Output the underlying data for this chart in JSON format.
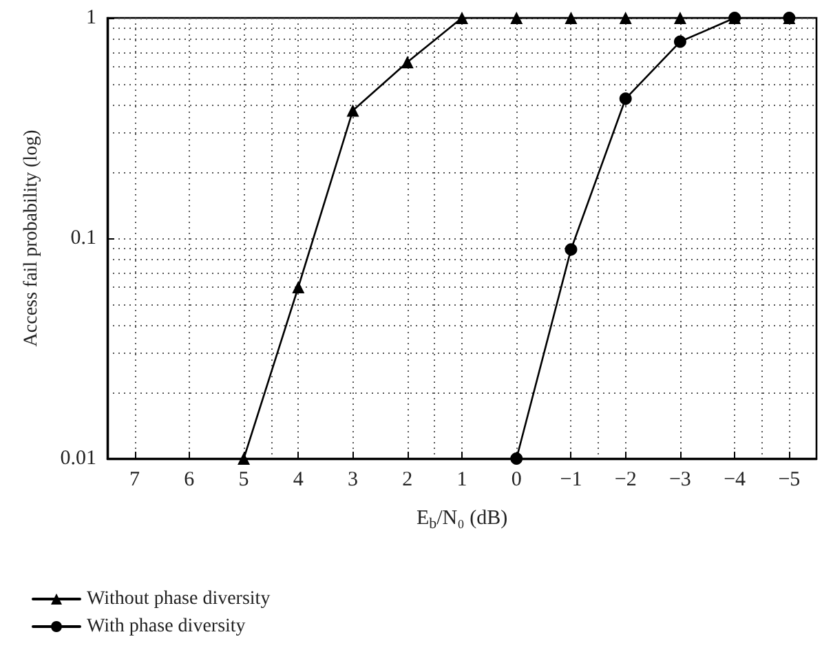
{
  "chart_data": {
    "type": "line",
    "xlabel": "E$_{b}$/N₀ (dB)",
    "ylabel": "Access fail probability (log)",
    "log": "y",
    "series": [
      {
        "name": "Without phase diversity",
        "color": "#000000",
        "marker": "triangle",
        "x": [
          5,
          4,
          3,
          2,
          1,
          0,
          -1,
          -2,
          -3,
          -4,
          -5
        ],
        "values": [
          0.01,
          0.06,
          0.38,
          0.63,
          1,
          1,
          1,
          1,
          1,
          1,
          1
        ]
      },
      {
        "name": "With phase diversity",
        "color": "#000000",
        "marker": "circle",
        "x": [
          0,
          -1,
          -2,
          -3,
          -4,
          -5
        ],
        "values": [
          0.01,
          0.089,
          0.43,
          0.78,
          1,
          1
        ]
      }
    ],
    "xlim": [
      7.5,
      -5.5
    ],
    "xticks": [
      7,
      6,
      5,
      4,
      3,
      2,
      1,
      0,
      {
        "value": -1,
        "label": "−1"
      },
      {
        "value": -2,
        "label": "−2"
      },
      {
        "value": -3,
        "label": "−3"
      },
      {
        "value": -4,
        "label": "−4"
      },
      {
        "value": -5,
        "label": "−5"
      }
    ],
    "ylim": [
      0.01,
      1
    ],
    "yticks": [
      0.01,
      0.1,
      1
    ],
    "grid": true,
    "legend": "bottom left",
    "line_style": "solid"
  }
}
